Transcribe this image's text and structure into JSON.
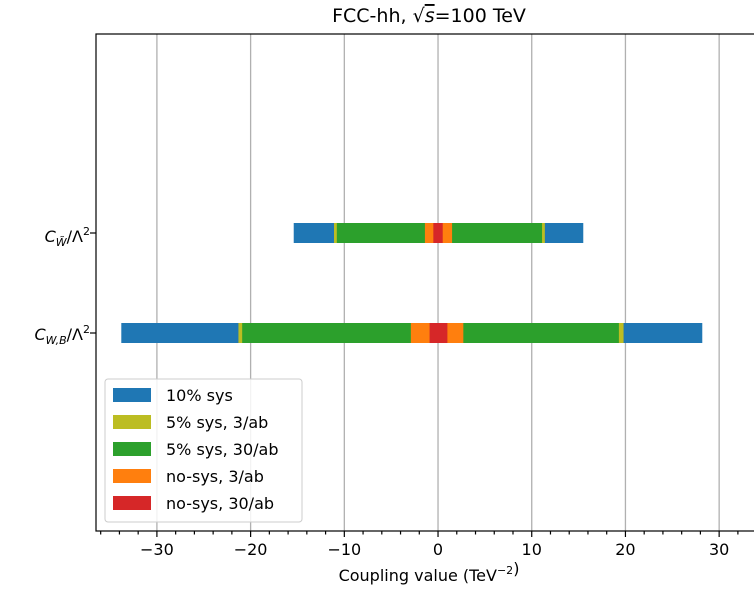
{
  "chart_data": {
    "type": "bar",
    "orientation": "horizontal",
    "title": "FCC-hh, √s=100 TeV",
    "xlabel": "Coupling value (TeV⁻²)",
    "ylabel": "",
    "xlim": [
      -36.5,
      35
    ],
    "xticks": [
      -30,
      -20,
      -10,
      0,
      10,
      20,
      30
    ],
    "xtick_labels": [
      "−30",
      "−20",
      "−10",
      "0",
      "10",
      "20",
      "30"
    ],
    "grid": "vertical",
    "legend_position": "bottom-left",
    "categories": [
      "C_W̃/Λ²",
      "C_W,B/Λ²"
    ],
    "series": [
      {
        "name": "10% sys",
        "color": "#1f77b4",
        "intervals": [
          [
            -15.4,
            15.5
          ],
          [
            -33.8,
            28.2
          ]
        ]
      },
      {
        "name": "5% sys, 3/ab",
        "color": "#bcbd22",
        "intervals": [
          [
            -11.1,
            11.4
          ],
          [
            -21.3,
            19.8
          ]
        ]
      },
      {
        "name": "5% sys, 30/ab",
        "color": "#2ca02c",
        "intervals": [
          [
            -10.8,
            11.1
          ],
          [
            -20.9,
            19.3
          ]
        ]
      },
      {
        "name": "no-sys, 3/ab",
        "color": "#ff7f0e",
        "intervals": [
          [
            -1.4,
            1.5
          ],
          [
            -2.9,
            2.7
          ]
        ]
      },
      {
        "name": "no-sys, 30/ab",
        "color": "#d62728",
        "intervals": [
          [
            -0.5,
            0.5
          ],
          [
            -0.9,
            1.0
          ]
        ]
      }
    ]
  }
}
